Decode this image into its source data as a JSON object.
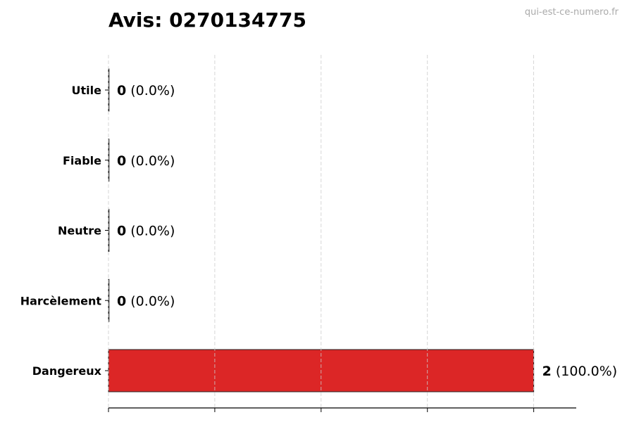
{
  "chart_data": {
    "type": "bar",
    "orientation": "horizontal",
    "title": "Avis: 0270134775",
    "watermark": "qui-est-ce-numero.fr",
    "categories": [
      "Utile",
      "Fiable",
      "Neutre",
      "Harcèlement",
      "Dangereux"
    ],
    "values": [
      0,
      0,
      0,
      0,
      2
    ],
    "value_labels": [
      "0",
      "0",
      "0",
      "0",
      "2"
    ],
    "percent_labels": [
      "(0.0%)",
      "(0.0%)",
      "(0.0%)",
      "(0.0%)",
      "(100.0%)"
    ],
    "xlabel": "",
    "ylabel": "",
    "xlim": [
      0,
      2.2
    ],
    "xticks": [
      0,
      0.5,
      1,
      1.5,
      2
    ],
    "xtick_labels_shown": false,
    "grid": "vertical dashed",
    "bar_color": "#dc2626",
    "bar_edge_color": "#222222"
  }
}
